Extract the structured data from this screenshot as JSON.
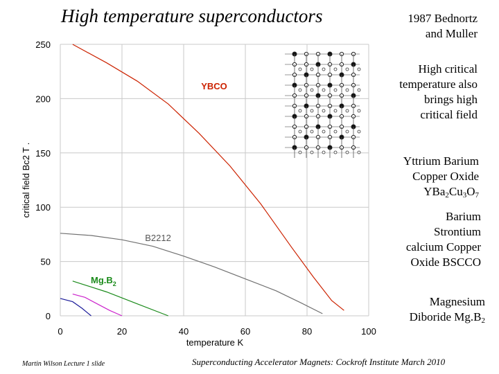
{
  "slide": {
    "title": "High temperature superconductors",
    "notes": {
      "bednortz_line1": "1987 Bednortz",
      "bednortz_line2": "and Muller",
      "critical_line1": "High critical",
      "critical_line2": "temperature also",
      "critical_line3": "brings high",
      "critical_line4": "critical field",
      "ybco_line1": "Yttrium Barium",
      "ybco_line2": "Copper Oxide",
      "ybco_formula_base": "YBa",
      "ybco_formula_sub1": "2",
      "ybco_formula_mid": "Cu",
      "ybco_formula_sub2": "3",
      "ybco_formula_o": "O",
      "ybco_formula_sub3": "7",
      "bscco_line1": "Barium",
      "bscco_line2": "Strontium",
      "bscco_line3": "calcium Copper",
      "bscco_line4": "Oxide BSCCO",
      "mgb2_line1": "Magnesium",
      "mgb2_line2_base": "Diboride Mg.B",
      "mgb2_line2_sub": "2"
    },
    "footer_left": "Martin Wilson Lecture 1 slide",
    "footer_right": "Superconducting Accelerator Magnets:  Cockroft Institute March 2010"
  },
  "chart_data": {
    "type": "line",
    "xlabel": "temperature K",
    "ylabel": "critical field Bc2  T .",
    "xlim": [
      0,
      100
    ],
    "ylim": [
      0,
      250
    ],
    "xticks": [
      0,
      20,
      40,
      60,
      80,
      100
    ],
    "yticks": [
      0,
      50,
      100,
      150,
      200,
      250
    ],
    "grid": true,
    "series": [
      {
        "name": "YBCO",
        "color": "#cc2200",
        "x": [
          4,
          15,
          25,
          35,
          45,
          55,
          65,
          75,
          82,
          88,
          92
        ],
        "y": [
          250,
          233,
          216,
          195,
          168,
          138,
          103,
          63,
          36,
          14,
          5
        ]
      },
      {
        "name": "B2212",
        "color": "#707070",
        "x": [
          0,
          10,
          20,
          30,
          40,
          50,
          60,
          70,
          78,
          85
        ],
        "y": [
          76,
          74,
          70,
          64,
          55,
          45,
          34,
          23,
          12,
          2
        ]
      },
      {
        "name": "",
        "label_base": "Mg.B",
        "label_sub": "2",
        "color": "#1a8a1a",
        "x": [
          4,
          15,
          25,
          35
        ],
        "y": [
          32,
          22,
          11,
          0
        ]
      },
      {
        "name": "",
        "color": "#cc22cc",
        "x": [
          4,
          8,
          12,
          16,
          20
        ],
        "y": [
          20,
          17,
          11,
          5,
          0
        ]
      },
      {
        "name": "",
        "color": "#1a1a99",
        "x": [
          0,
          4,
          7,
          10
        ],
        "y": [
          16,
          13,
          7,
          0
        ]
      }
    ]
  }
}
